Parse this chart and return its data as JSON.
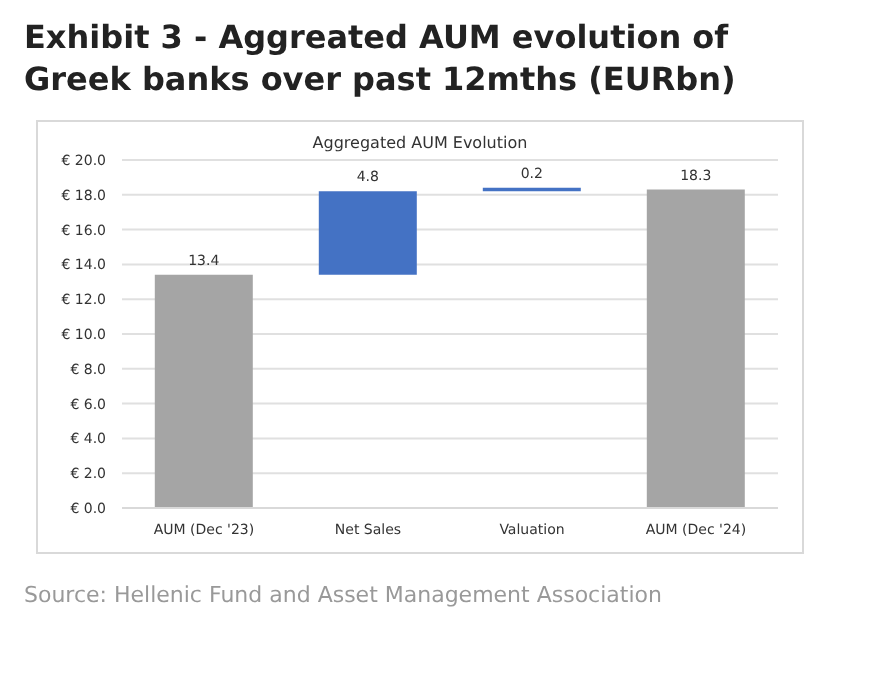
{
  "chart_data": {
    "type": "bar",
    "title": "Exhibit 3 - Aggreated AUM evolution of Greek banks over past 12mths (EURbn)",
    "subtitle": "Aggregated AUM Evolution",
    "categories": [
      "AUM (Dec '23)",
      "Net Sales",
      "Valuation",
      "AUM (Dec '24)"
    ],
    "values": [
      13.4,
      4.8,
      0.2,
      18.3
    ],
    "base": [
      0,
      13.4,
      18.2,
      0
    ],
    "colors": [
      "#a5a5a5",
      "#4472c4",
      "#4472c4",
      "#a5a5a5"
    ],
    "ylim": [
      0,
      20
    ],
    "yticks": [
      {
        "value": 0,
        "label": "€ 0.0"
      },
      {
        "value": 2,
        "label": "€ 2.0"
      },
      {
        "value": 4,
        "label": "€ 4.0"
      },
      {
        "value": 6,
        "label": "€ 6.0"
      },
      {
        "value": 8,
        "label": "€ 8.0"
      },
      {
        "value": 10,
        "label": "€ 10.0"
      },
      {
        "value": 12,
        "label": "€ 12.0"
      },
      {
        "value": 14,
        "label": "€ 14.0"
      },
      {
        "value": 16,
        "label": "€ 16.0"
      },
      {
        "value": 18,
        "label": "€ 18.0"
      },
      {
        "value": 20,
        "label": "€ 20.0"
      }
    ],
    "grid": "y",
    "data_labels": true,
    "annotations": [
      "Source: Hellenic Fund and Asset Management Association"
    ]
  }
}
